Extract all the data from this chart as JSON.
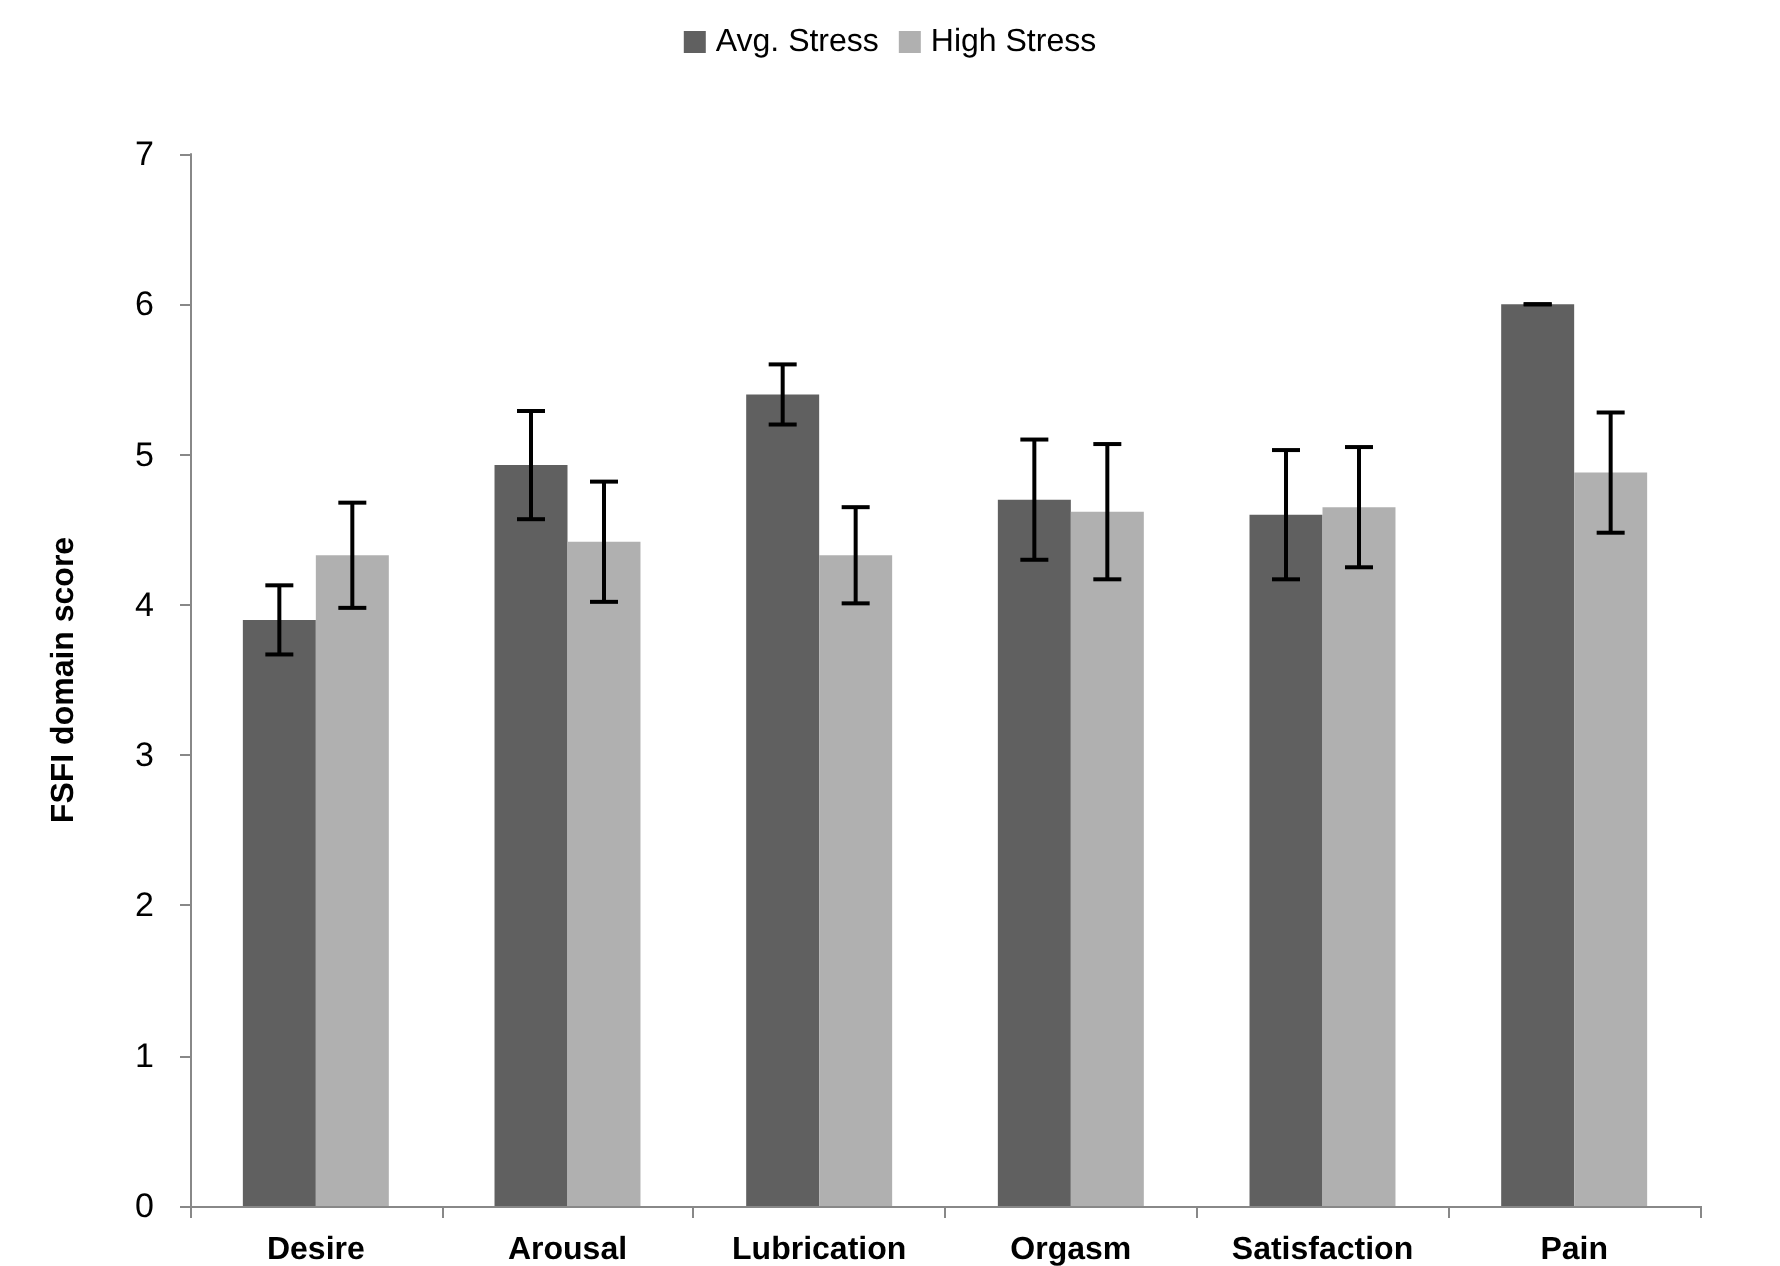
{
  "chart_data": {
    "type": "bar",
    "ylabel": "FSFI domain score",
    "categories": [
      "Desire",
      "Arousal",
      "Lubrication",
      "Orgasm",
      "Satisfaction",
      "Pain"
    ],
    "series": [
      {
        "name": "Avg. Stress",
        "color": "#606060",
        "values": [
          3.9,
          4.93,
          5.4,
          4.7,
          4.6,
          6.0
        ],
        "errors": [
          0.23,
          0.36,
          0.2,
          0.4,
          0.43,
          0
        ]
      },
      {
        "name": "High Stress",
        "color": "#b0b0b0",
        "values": [
          4.33,
          4.42,
          4.33,
          4.62,
          4.65,
          4.88
        ],
        "errors": [
          0.35,
          0.4,
          0.32,
          0.45,
          0.4,
          0.4
        ]
      }
    ],
    "ylim": [
      0,
      7
    ],
    "yticks": [
      0,
      1,
      2,
      3,
      4,
      5,
      6,
      7
    ],
    "grid": false,
    "legend": "top"
  }
}
